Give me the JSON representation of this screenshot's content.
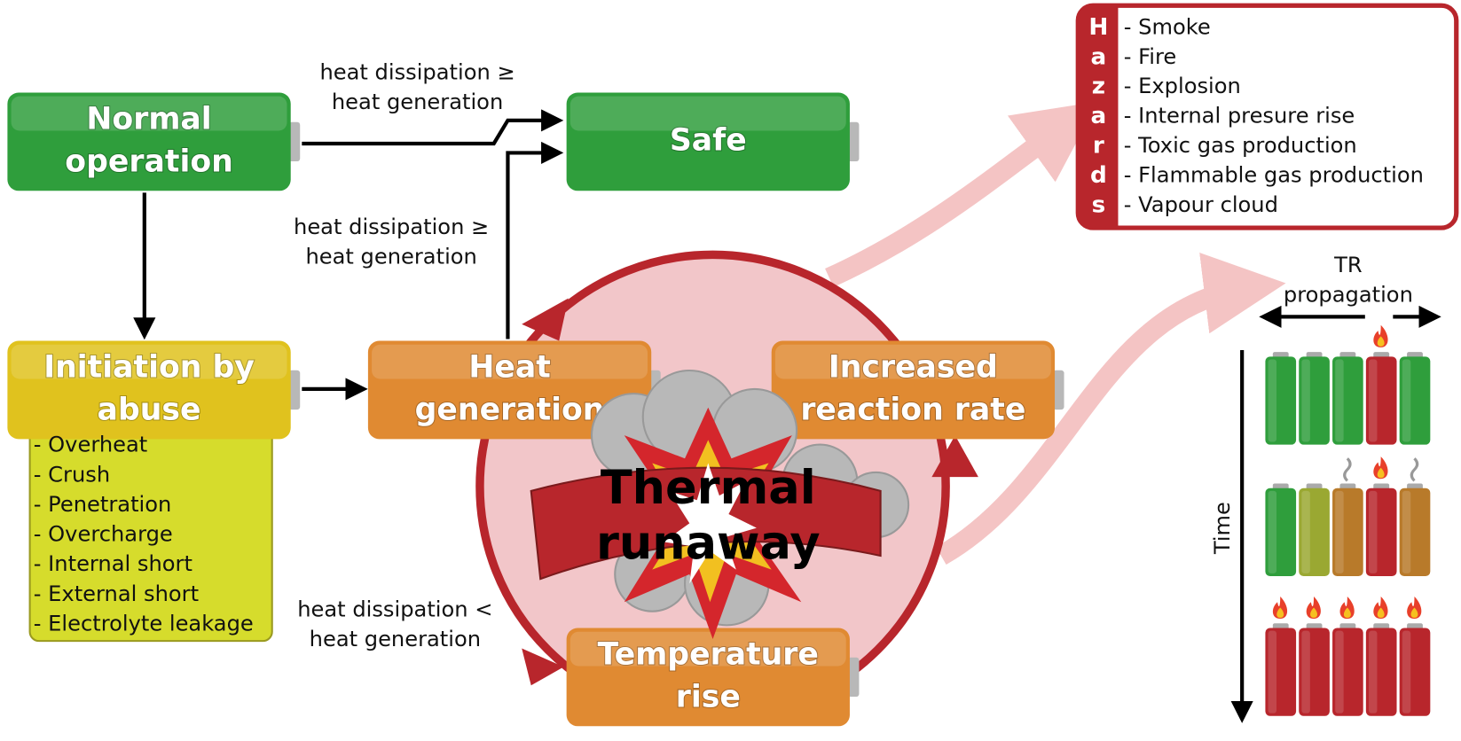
{
  "nodes": {
    "normal_operation": [
      "Normal",
      "operation"
    ],
    "safe": [
      "Safe"
    ],
    "initiation": [
      "Initiation by",
      "abuse"
    ],
    "heat_generation": [
      "Heat",
      "generation"
    ],
    "increased_reaction_rate": [
      "Increased",
      "reaction rate"
    ],
    "temperature_rise": [
      "Temperature",
      "rise"
    ],
    "thermal_runaway": [
      "Thermal",
      "runaway"
    ]
  },
  "edge_labels": {
    "normal_to_safe": [
      "heat dissipation ≥",
      "heat generation"
    ],
    "heat_to_safe": [
      "heat dissipation ≥",
      "heat generation"
    ],
    "heat_to_temperature": [
      "heat dissipation <",
      "heat generation"
    ]
  },
  "abuse_types": [
    "- Overheat",
    "- Crush",
    "- Penetration",
    "- Overcharge",
    "- Internal short",
    "- External short",
    "- Electrolyte leakage"
  ],
  "hazards": {
    "title_letters": [
      "H",
      "a",
      "z",
      "a",
      "r",
      "d",
      "s"
    ],
    "items": [
      "- Smoke",
      "- Fire",
      "- Explosion",
      "- Internal presure rise",
      "- Toxic gas production",
      "- Flammable gas production",
      "- Vapour cloud"
    ]
  },
  "propagation": {
    "label": [
      "TR",
      "propagation"
    ],
    "time_label": "Time"
  }
}
